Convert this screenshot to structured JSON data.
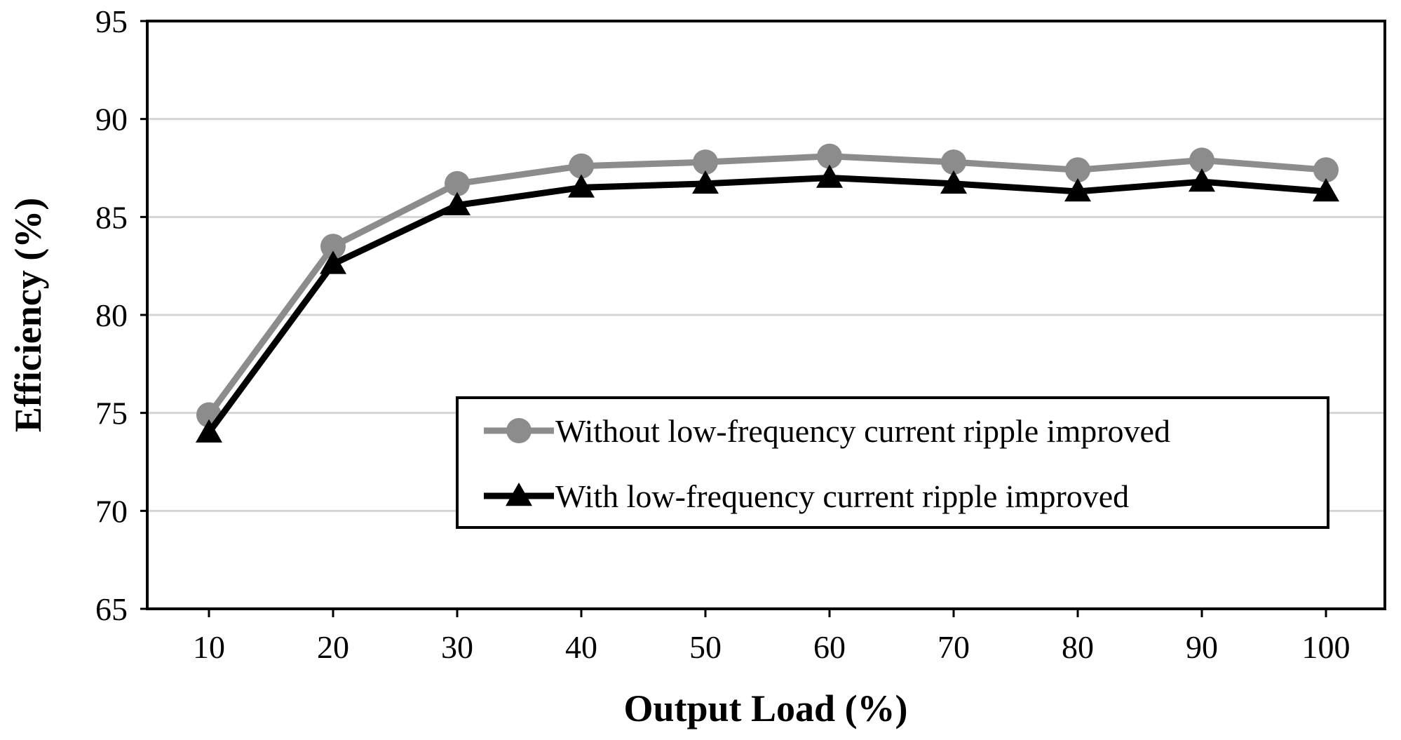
{
  "chart_data": {
    "type": "line",
    "title": "",
    "xlabel": "Output Load (%)",
    "ylabel": "Efficiency (%)",
    "x": [
      10,
      20,
      30,
      40,
      50,
      60,
      70,
      80,
      90,
      100
    ],
    "x_tick_labels": [
      "10",
      "20",
      "30",
      "40",
      "50",
      "60",
      "70",
      "80",
      "90",
      "100"
    ],
    "y_tick_labels": [
      "65",
      "70",
      "75",
      "80",
      "85",
      "90",
      "95"
    ],
    "y_ticks": [
      65,
      70,
      75,
      80,
      85,
      90,
      95
    ],
    "ylim": [
      65,
      95
    ],
    "grid": "horizontal",
    "legend_position": "lower-right",
    "series": [
      {
        "name": "Without low-frequency current ripple improved",
        "marker": "circle",
        "color": "#8c8c8c",
        "values": [
          74.9,
          83.5,
          86.7,
          87.6,
          87.8,
          88.1,
          87.8,
          87.4,
          87.9,
          87.4
        ]
      },
      {
        "name": "With low-frequency current ripple improved",
        "marker": "triangle",
        "color": "#000000",
        "values": [
          74.0,
          82.6,
          85.6,
          86.5,
          86.7,
          87.0,
          86.7,
          86.3,
          86.8,
          86.3
        ]
      }
    ]
  }
}
